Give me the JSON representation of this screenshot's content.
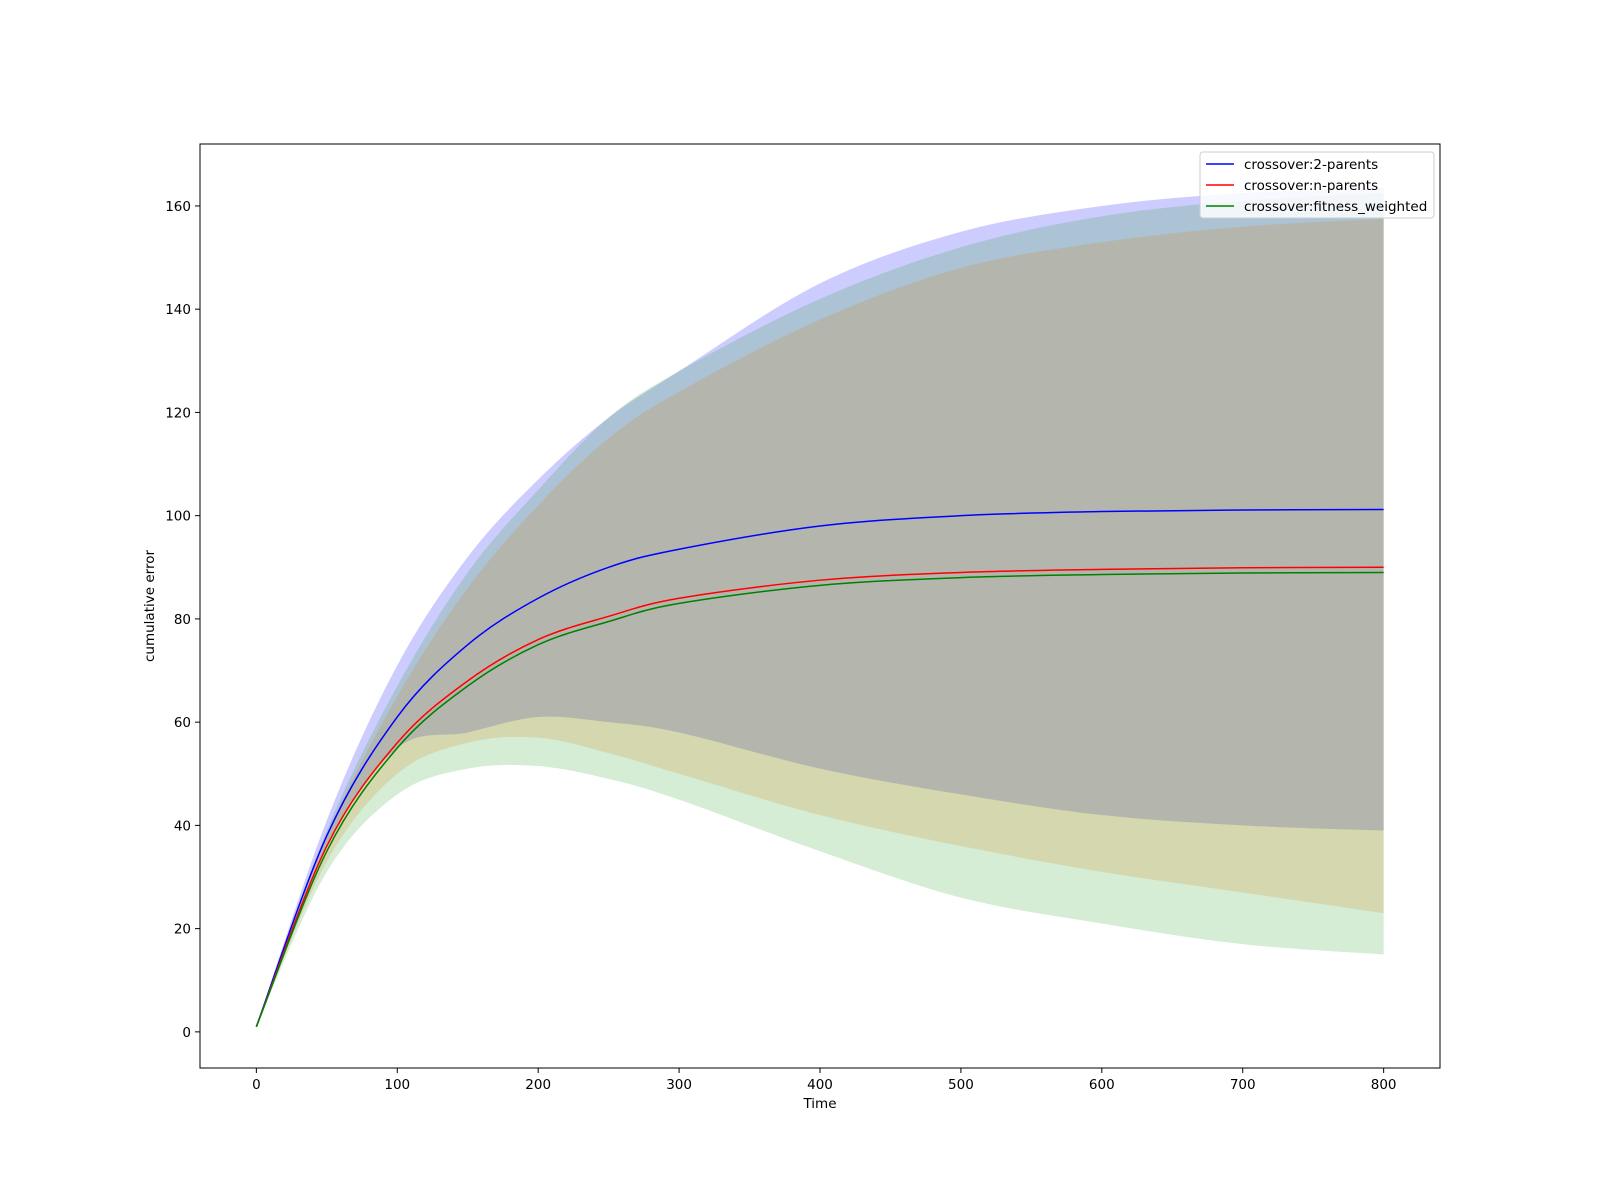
{
  "chart_data": {
    "type": "line",
    "title": "",
    "xlabel": "Time",
    "ylabel": "cumulative error",
    "xlim": [
      -40,
      840
    ],
    "ylim": [
      -7,
      172
    ],
    "xticks": [
      0,
      100,
      200,
      300,
      400,
      500,
      600,
      700,
      800
    ],
    "yticks": [
      0,
      20,
      40,
      60,
      80,
      100,
      120,
      140,
      160
    ],
    "grid": false,
    "legend_position": "upper right",
    "error_bars": true,
    "series": [
      {
        "name": "crossover:2-parents",
        "color": "#0000ff",
        "band_color": "#0000ff",
        "x": [
          0,
          50,
          100,
          150,
          200,
          250,
          300,
          400,
          500,
          600,
          700,
          800
        ],
        "y": [
          1,
          38,
          61,
          75,
          84,
          90,
          93.5,
          98,
          100,
          100.8,
          101.1,
          101.2
        ],
        "upper": [
          1,
          41,
          71,
          92,
          107,
          119,
          128,
          145,
          155,
          160,
          162.5,
          163.5
        ],
        "lower": [
          1,
          36,
          55,
          58,
          61,
          60,
          58,
          51,
          46,
          42,
          40,
          39
        ]
      },
      {
        "name": "crossover:n-parents",
        "color": "#ff0000",
        "band_color": "#ff7f0e",
        "x": [
          0,
          50,
          100,
          150,
          200,
          250,
          300,
          400,
          500,
          600,
          700,
          800
        ],
        "y": [
          1,
          36,
          56,
          68,
          76,
          80.5,
          84,
          87.5,
          89,
          89.6,
          89.9,
          90
        ],
        "upper": [
          1,
          38,
          65,
          86,
          102,
          115,
          124,
          138,
          148,
          153,
          156,
          157.5
        ],
        "lower": [
          1,
          33,
          50,
          56,
          57,
          54,
          50,
          42,
          36,
          31,
          27,
          23
        ]
      },
      {
        "name": "crossover:fitness_weighted",
        "color": "#008000",
        "band_color": "#2ca02c",
        "x": [
          0,
          50,
          100,
          150,
          200,
          250,
          300,
          400,
          500,
          600,
          700,
          800
        ],
        "y": [
          1,
          35,
          55,
          67,
          75,
          79.5,
          83,
          86.5,
          88,
          88.6,
          88.9,
          89
        ],
        "upper": [
          1,
          39,
          67,
          89,
          105,
          119,
          128,
          142,
          152,
          158,
          161,
          162.5
        ],
        "lower": [
          1,
          31,
          46,
          51,
          51.5,
          49,
          45,
          35,
          26,
          21,
          17,
          15
        ]
      }
    ]
  }
}
